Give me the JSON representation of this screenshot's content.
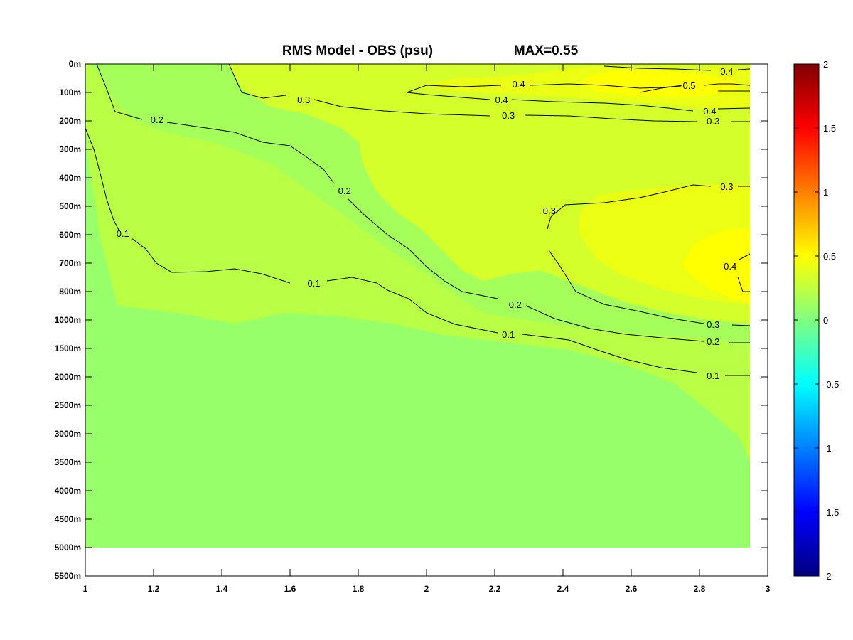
{
  "chart_data": [
    {
      "type": "heatmap",
      "title": "RMS Model - OBS (psu)",
      "subtitle": "MAX=0.55",
      "xlabel": "",
      "ylabel": "",
      "xlim": [
        1,
        3
      ],
      "x_ticks": [
        "1",
        "1.2",
        "1.4",
        "1.6",
        "1.8",
        "2",
        "2.2",
        "2.4",
        "2.6",
        "2.8",
        "3"
      ],
      "y_ticks": [
        "0m",
        "100m",
        "200m",
        "300m",
        "400m",
        "500m",
        "600m",
        "700m",
        "800m",
        "1000m",
        "1500m",
        "2000m",
        "2500m",
        "3000m",
        "3500m",
        "4000m",
        "4500m",
        "5000m",
        "5500m"
      ],
      "data_xmax": 2.95,
      "data_bottom_level": "5000m",
      "colorbar": {
        "range": [
          -2,
          2
        ],
        "ticks": [
          "2",
          "1.5",
          "1",
          "0.5",
          "0",
          "-0.5",
          "-1",
          "-1.5",
          "-2"
        ],
        "colormap": "jet"
      },
      "fill_regions": [
        {
          "level": "0.1-0.2",
          "color": "#b9ff46"
        },
        {
          "level": "0.2-0.3",
          "color": "#a5ff5a"
        },
        {
          "level": "0.3-0.4",
          "color": "#d5ff2a"
        },
        {
          "level": "0.4-0.5",
          "color": "#eaff14"
        },
        {
          "level": "0.5-0.55",
          "color": "#ffff00"
        }
      ],
      "background_fill_color": "#96ff69",
      "contour_labels": [
        {
          "text": "0.1",
          "x": 1.11,
          "depth_index": 5.95
        },
        {
          "text": "0.1",
          "x": 1.67,
          "depth_index": 7.7
        },
        {
          "text": "0.1",
          "x": 2.24,
          "depth_index": 9.5
        },
        {
          "text": "0.1",
          "x": 2.84,
          "depth_index": 10.95
        },
        {
          "text": "0.2",
          "x": 1.21,
          "depth_index": 1.95
        },
        {
          "text": "0.2",
          "x": 1.76,
          "depth_index": 4.45
        },
        {
          "text": "0.2",
          "x": 2.26,
          "depth_index": 8.45
        },
        {
          "text": "0.2",
          "x": 2.84,
          "depth_index": 9.75
        },
        {
          "text": "0.3",
          "x": 1.64,
          "depth_index": 1.25
        },
        {
          "text": "0.3",
          "x": 2.24,
          "depth_index": 1.8
        },
        {
          "text": "0.3",
          "x": 2.84,
          "depth_index": 2.0
        },
        {
          "text": "0.3",
          "x": 2.36,
          "depth_index": 5.15
        },
        {
          "text": "0.3",
          "x": 2.88,
          "depth_index": 4.3
        },
        {
          "text": "0.3",
          "x": 2.84,
          "depth_index": 9.15
        },
        {
          "text": "0.4",
          "x": 2.88,
          "depth_index": 0.25
        },
        {
          "text": "0.4",
          "x": 2.27,
          "depth_index": 0.7
        },
        {
          "text": "0.4",
          "x": 2.22,
          "depth_index": 1.25
        },
        {
          "text": "0.4",
          "x": 2.83,
          "depth_index": 1.65
        },
        {
          "text": "0.4",
          "x": 2.89,
          "depth_index": 7.1
        },
        {
          "text": "0.5",
          "x": 2.77,
          "depth_index": 0.75
        }
      ]
    }
  ]
}
